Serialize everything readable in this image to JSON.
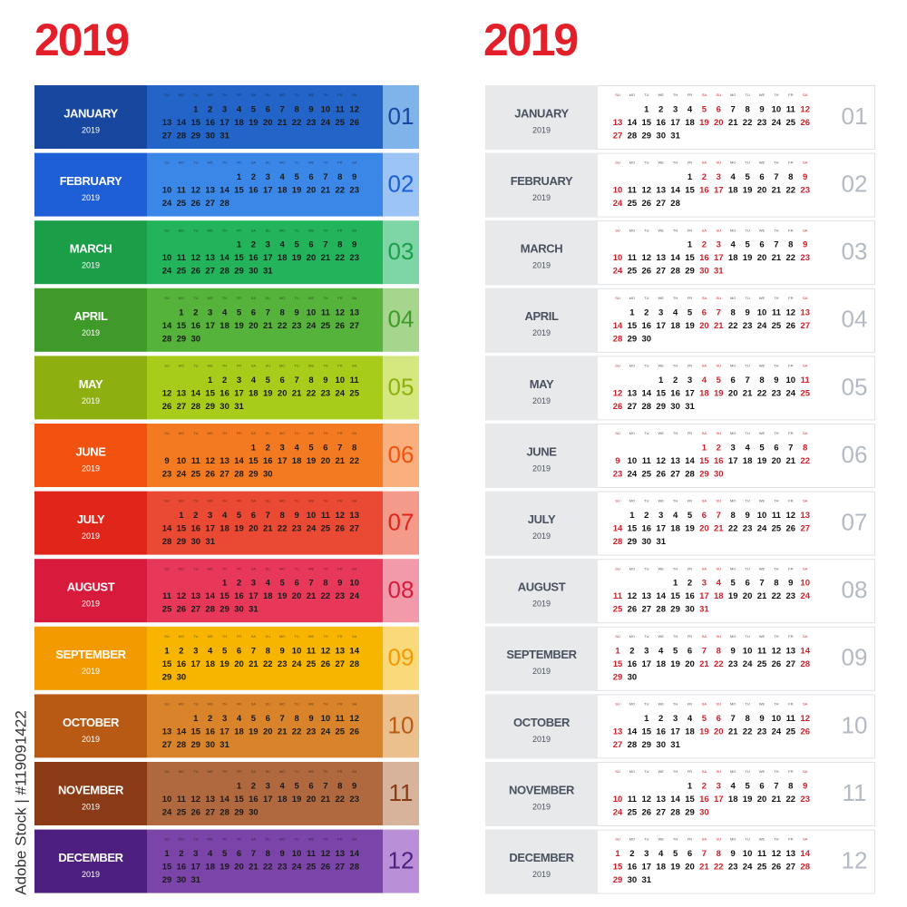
{
  "panels": [
    {
      "title": "2019",
      "style": "color"
    },
    {
      "title": "2019",
      "style": "plain"
    }
  ],
  "weekdays": [
    "SU",
    "MO",
    "TU",
    "WE",
    "TH",
    "FR",
    "SA"
  ],
  "watermark": "Adobe Stock | #119091422",
  "months": [
    {
      "name": "JANUARY",
      "year": "2019",
      "number": "01",
      "colors": [
        "#17479e",
        "#2364c8",
        "#7fb4ea"
      ],
      "days": [
        1,
        2,
        3,
        4,
        5,
        6,
        7,
        8,
        9,
        10,
        11,
        12,
        13,
        14,
        15,
        16,
        17,
        18,
        19,
        20,
        21,
        22,
        23,
        24,
        25,
        26,
        27,
        28,
        29,
        30,
        31
      ]
    },
    {
      "name": "FEBRUARY",
      "year": "2019",
      "number": "02",
      "colors": [
        "#1e5ed6",
        "#3b87e8",
        "#9cc4f4"
      ],
      "days": [
        1,
        2,
        3,
        4,
        5,
        6,
        7,
        8,
        9,
        10,
        11,
        12,
        13,
        14,
        15,
        16,
        17,
        18,
        19,
        20,
        21,
        22,
        23,
        24,
        25,
        26,
        27,
        28
      ]
    },
    {
      "name": "MARCH",
      "year": "2019",
      "number": "03",
      "colors": [
        "#1b9e48",
        "#23b35a",
        "#7ed6a6"
      ],
      "days": [
        1,
        2,
        3,
        4,
        5,
        6,
        7,
        8,
        9,
        10,
        11,
        12,
        13,
        14,
        15,
        16,
        17,
        18,
        19,
        20,
        21,
        22,
        23,
        24,
        25,
        26,
        27,
        28,
        29,
        30,
        31
      ]
    },
    {
      "name": "APRIL",
      "year": "2019",
      "number": "04",
      "colors": [
        "#3f9a2a",
        "#55b23a",
        "#a6d58e"
      ],
      "days": [
        1,
        2,
        3,
        4,
        5,
        6,
        7,
        8,
        9,
        10,
        11,
        12,
        13,
        14,
        15,
        16,
        17,
        18,
        19,
        20,
        21,
        22,
        23,
        24,
        25,
        26,
        27,
        28,
        29,
        30
      ]
    },
    {
      "name": "MAY",
      "year": "2019",
      "number": "05",
      "colors": [
        "#8db010",
        "#a8cc1a",
        "#d5e87f"
      ],
      "days": [
        1,
        2,
        3,
        4,
        5,
        6,
        7,
        8,
        9,
        10,
        11,
        12,
        13,
        14,
        15,
        16,
        17,
        18,
        19,
        20,
        21,
        22,
        23,
        24,
        25,
        26,
        27,
        28,
        29,
        30,
        31
      ]
    },
    {
      "name": "JUNE",
      "year": "2019",
      "number": "06",
      "colors": [
        "#f2520f",
        "#f47a22",
        "#f9b07e"
      ],
      "days": [
        1,
        2,
        3,
        4,
        5,
        6,
        7,
        8,
        9,
        10,
        11,
        12,
        13,
        14,
        15,
        16,
        17,
        18,
        19,
        20,
        21,
        22,
        23,
        24,
        25,
        26,
        27,
        28,
        29,
        30
      ]
    },
    {
      "name": "JULY",
      "year": "2019",
      "number": "07",
      "colors": [
        "#e0261a",
        "#ea4a33",
        "#f39a8a"
      ],
      "days": [
        1,
        2,
        3,
        4,
        5,
        6,
        7,
        8,
        9,
        10,
        11,
        12,
        13,
        14,
        15,
        16,
        17,
        18,
        19,
        20,
        21,
        22,
        23,
        24,
        25,
        26,
        27,
        28,
        29,
        30,
        31
      ]
    },
    {
      "name": "AUGUST",
      "year": "2019",
      "number": "08",
      "colors": [
        "#d81b3c",
        "#e8385a",
        "#f29aaa"
      ],
      "days": [
        1,
        2,
        3,
        4,
        5,
        6,
        7,
        8,
        9,
        10,
        11,
        12,
        13,
        14,
        15,
        16,
        17,
        18,
        19,
        20,
        21,
        22,
        23,
        24,
        25,
        26,
        27,
        28,
        29,
        30,
        31
      ]
    },
    {
      "name": "SEPTEMBER",
      "year": "2019",
      "number": "09",
      "colors": [
        "#f29a00",
        "#f7b500",
        "#fad97a"
      ],
      "days": [
        1,
        2,
        3,
        4,
        5,
        6,
        7,
        8,
        9,
        10,
        11,
        12,
        13,
        14,
        15,
        16,
        17,
        18,
        19,
        20,
        21,
        22,
        23,
        24,
        25,
        26,
        27,
        28,
        29,
        30
      ]
    },
    {
      "name": "OCTOBER",
      "year": "2019",
      "number": "10",
      "colors": [
        "#b85a14",
        "#d9832a",
        "#ecc08c"
      ],
      "days": [
        1,
        2,
        3,
        4,
        5,
        6,
        7,
        8,
        9,
        10,
        11,
        12,
        13,
        14,
        15,
        16,
        17,
        18,
        19,
        20,
        21,
        22,
        23,
        24,
        25,
        26,
        27,
        28,
        29,
        30,
        31
      ]
    },
    {
      "name": "NOVEMBER",
      "year": "2019",
      "number": "11",
      "colors": [
        "#8a3a15",
        "#b0683e",
        "#d8b39b"
      ],
      "days": [
        1,
        2,
        3,
        4,
        5,
        6,
        7,
        8,
        9,
        10,
        11,
        12,
        13,
        14,
        15,
        16,
        17,
        18,
        19,
        20,
        21,
        22,
        23,
        24,
        25,
        26,
        27,
        28,
        29,
        30
      ]
    },
    {
      "name": "DECEMBER",
      "year": "2019",
      "number": "12",
      "colors": [
        "#4d2080",
        "#7a44a8",
        "#b98fd8"
      ],
      "days": [
        1,
        2,
        3,
        4,
        5,
        6,
        7,
        8,
        9,
        10,
        11,
        12,
        13,
        14,
        15,
        16,
        17,
        18,
        19,
        20,
        21,
        22,
        23,
        24,
        25,
        26,
        27,
        28,
        29,
        30,
        31
      ]
    }
  ]
}
